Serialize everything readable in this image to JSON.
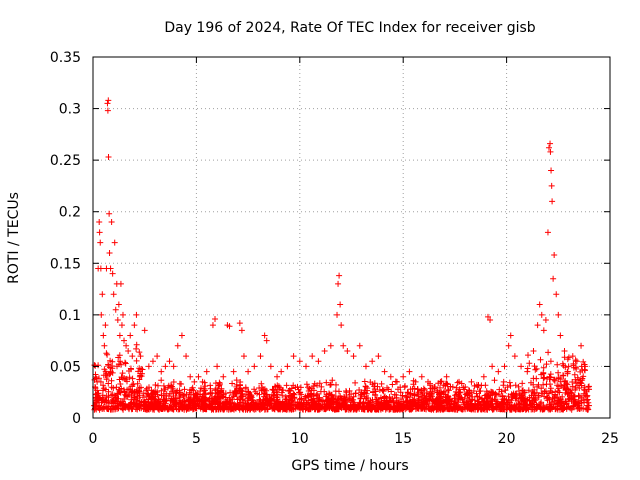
{
  "chart_data": {
    "type": "scatter",
    "title": "Day 196 of 2024, Rate Of TEC Index for receiver gisb",
    "xlabel": "GPS time / hours",
    "ylabel": "ROTI / TECUs",
    "xlim": [
      0,
      25
    ],
    "ylim": [
      0,
      0.35
    ],
    "xticks": [
      0,
      5,
      10,
      15,
      20,
      25
    ],
    "yticks": [
      0,
      0.05,
      0.1,
      0.15,
      0.2,
      0.25,
      0.3,
      0.35
    ],
    "xtick_labels": [
      "0",
      "5",
      "10",
      "15",
      "20",
      "25"
    ],
    "ytick_labels": [
      "0",
      "0.05",
      "0.1",
      "0.15",
      "0.2",
      "0.25",
      "0.3",
      "0.35"
    ],
    "grid": true,
    "marker": "+",
    "series": [
      {
        "name": "ROTI",
        "color": "#ff0000",
        "points": [
          [
            0.05,
            0.012
          ],
          [
            0.1,
            0.03
          ],
          [
            0.15,
            0.02
          ],
          [
            0.2,
            0.035
          ],
          [
            0.25,
            0.145
          ],
          [
            0.3,
            0.19
          ],
          [
            0.32,
            0.18
          ],
          [
            0.35,
            0.17
          ],
          [
            0.38,
            0.145
          ],
          [
            0.4,
            0.1
          ],
          [
            0.45,
            0.12
          ],
          [
            0.5,
            0.08
          ],
          [
            0.55,
            0.07
          ],
          [
            0.6,
            0.09
          ],
          [
            0.65,
            0.145
          ],
          [
            0.7,
            0.305
          ],
          [
            0.72,
            0.298
          ],
          [
            0.74,
            0.308
          ],
          [
            0.75,
            0.253
          ],
          [
            0.78,
            0.198
          ],
          [
            0.8,
            0.16
          ],
          [
            0.85,
            0.145
          ],
          [
            0.9,
            0.19
          ],
          [
            0.95,
            0.14
          ],
          [
            1.0,
            0.12
          ],
          [
            1.05,
            0.17
          ],
          [
            1.1,
            0.105
          ],
          [
            1.15,
            0.13
          ],
          [
            1.2,
            0.095
          ],
          [
            1.25,
            0.11
          ],
          [
            1.3,
            0.08
          ],
          [
            1.35,
            0.13
          ],
          [
            1.4,
            0.09
          ],
          [
            1.45,
            0.1
          ],
          [
            1.5,
            0.075
          ],
          [
            1.6,
            0.07
          ],
          [
            1.7,
            0.065
          ],
          [
            1.8,
            0.08
          ],
          [
            1.9,
            0.06
          ],
          [
            2.0,
            0.09
          ],
          [
            2.1,
            0.1
          ],
          [
            2.3,
            0.06
          ],
          [
            2.5,
            0.085
          ],
          [
            2.7,
            0.05
          ],
          [
            2.9,
            0.055
          ],
          [
            3.1,
            0.06
          ],
          [
            3.3,
            0.045
          ],
          [
            3.5,
            0.05
          ],
          [
            3.7,
            0.055
          ],
          [
            3.9,
            0.05
          ],
          [
            4.1,
            0.07
          ],
          [
            4.3,
            0.08
          ],
          [
            4.5,
            0.06
          ],
          [
            4.7,
            0.04
          ],
          [
            4.9,
            0.035
          ],
          [
            5.1,
            0.04
          ],
          [
            5.3,
            0.035
          ],
          [
            5.5,
            0.045
          ],
          [
            5.8,
            0.09
          ],
          [
            5.9,
            0.096
          ],
          [
            6.0,
            0.05
          ],
          [
            6.3,
            0.04
          ],
          [
            6.5,
            0.09
          ],
          [
            6.6,
            0.089
          ],
          [
            6.8,
            0.045
          ],
          [
            7.1,
            0.092
          ],
          [
            7.2,
            0.085
          ],
          [
            7.3,
            0.06
          ],
          [
            7.5,
            0.045
          ],
          [
            7.8,
            0.05
          ],
          [
            8.1,
            0.06
          ],
          [
            8.3,
            0.08
          ],
          [
            8.4,
            0.075
          ],
          [
            8.6,
            0.05
          ],
          [
            8.9,
            0.04
          ],
          [
            9.1,
            0.045
          ],
          [
            9.4,
            0.05
          ],
          [
            9.7,
            0.06
          ],
          [
            10.0,
            0.055
          ],
          [
            10.3,
            0.05
          ],
          [
            10.6,
            0.06
          ],
          [
            10.9,
            0.055
          ],
          [
            11.2,
            0.065
          ],
          [
            11.5,
            0.07
          ],
          [
            11.8,
            0.1
          ],
          [
            11.85,
            0.13
          ],
          [
            11.9,
            0.138
          ],
          [
            11.95,
            0.11
          ],
          [
            12.0,
            0.09
          ],
          [
            12.1,
            0.07
          ],
          [
            12.3,
            0.065
          ],
          [
            12.6,
            0.06
          ],
          [
            12.9,
            0.07
          ],
          [
            13.2,
            0.05
          ],
          [
            13.5,
            0.055
          ],
          [
            13.8,
            0.06
          ],
          [
            14.1,
            0.045
          ],
          [
            14.4,
            0.04
          ],
          [
            14.7,
            0.035
          ],
          [
            15.0,
            0.04
          ],
          [
            15.3,
            0.045
          ],
          [
            15.6,
            0.035
          ],
          [
            15.9,
            0.04
          ],
          [
            16.2,
            0.035
          ],
          [
            16.5,
            0.03
          ],
          [
            16.8,
            0.035
          ],
          [
            17.1,
            0.04
          ],
          [
            17.4,
            0.03
          ],
          [
            17.7,
            0.035
          ],
          [
            18.0,
            0.03
          ],
          [
            18.3,
            0.035
          ],
          [
            18.6,
            0.03
          ],
          [
            18.9,
            0.04
          ],
          [
            19.1,
            0.098
          ],
          [
            19.2,
            0.095
          ],
          [
            19.3,
            0.05
          ],
          [
            19.6,
            0.045
          ],
          [
            19.9,
            0.05
          ],
          [
            20.1,
            0.07
          ],
          [
            20.2,
            0.08
          ],
          [
            20.4,
            0.06
          ],
          [
            20.7,
            0.05
          ],
          [
            21.0,
            0.045
          ],
          [
            21.3,
            0.065
          ],
          [
            21.5,
            0.09
          ],
          [
            21.6,
            0.11
          ],
          [
            21.7,
            0.1
          ],
          [
            21.8,
            0.085
          ],
          [
            21.9,
            0.095
          ],
          [
            22.0,
            0.18
          ],
          [
            22.05,
            0.262
          ],
          [
            22.1,
            0.266
          ],
          [
            22.12,
            0.258
          ],
          [
            22.15,
            0.24
          ],
          [
            22.18,
            0.225
          ],
          [
            22.2,
            0.21
          ],
          [
            22.25,
            0.135
          ],
          [
            22.3,
            0.158
          ],
          [
            22.4,
            0.12
          ],
          [
            22.5,
            0.1
          ],
          [
            22.6,
            0.08
          ],
          [
            22.8,
            0.065
          ],
          [
            23.0,
            0.05
          ],
          [
            23.2,
            0.06
          ],
          [
            23.4,
            0.055
          ],
          [
            23.6,
            0.07
          ],
          [
            23.8,
            0.05
          ],
          [
            23.95,
            0.03
          ]
        ]
      }
    ]
  }
}
